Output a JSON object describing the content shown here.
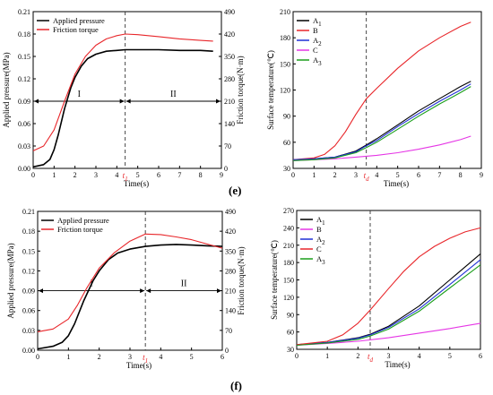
{
  "panel_labels": [
    "(e)",
    "(f)"
  ],
  "chart_data": [
    {
      "type": "line",
      "panel": "e-left",
      "xlabel": "Time(s)",
      "ylabel": "Applied pressure(MPa)",
      "y2label": "Friction torque(N·m)",
      "xlim": [
        0,
        9
      ],
      "ylim": [
        0,
        0.21
      ],
      "y2lim": [
        0,
        490
      ],
      "xticks": [
        "0",
        "1",
        "2",
        "3",
        "4",
        "5",
        "6",
        "7",
        "8",
        "9"
      ],
      "yticks": [
        "0.00",
        "0.03",
        "0.06",
        "0.09",
        "0.12",
        "0.15",
        "0.18",
        "0.21"
      ],
      "y2ticks": [
        "0",
        "70",
        "140",
        "210",
        "280",
        "350",
        "420",
        "490"
      ],
      "legend_position": "top-left",
      "marker": {
        "label": "t",
        "sub": "1",
        "x": 4.4
      },
      "region_arrow": {
        "y": 0.09,
        "split": 4.4,
        "labels": [
          "I",
          "II"
        ]
      },
      "series": [
        {
          "name": "Applied pressure",
          "color": "#000000",
          "axis": "left",
          "x": [
            0,
            0.5,
            0.8,
            1.0,
            1.2,
            1.5,
            1.8,
            2.0,
            2.3,
            2.6,
            3.0,
            3.5,
            4.0,
            4.4,
            5.0,
            6.0,
            7.0,
            8.0,
            8.6
          ],
          "y": [
            0.002,
            0.005,
            0.012,
            0.025,
            0.045,
            0.08,
            0.108,
            0.122,
            0.137,
            0.147,
            0.153,
            0.157,
            0.158,
            0.159,
            0.159,
            0.159,
            0.158,
            0.158,
            0.157
          ]
        },
        {
          "name": "Friction torque",
          "color": "#e8262a",
          "axis": "right",
          "x": [
            0,
            0.5,
            1.0,
            1.5,
            2.0,
            2.5,
            3.0,
            3.5,
            4.0,
            4.4,
            5.0,
            6.0,
            7.0,
            8.0,
            8.6
          ],
          "y": [
            55,
            70,
            120,
            210,
            295,
            350,
            385,
            405,
            415,
            420,
            418,
            412,
            405,
            400,
            398
          ]
        }
      ]
    },
    {
      "type": "line",
      "panel": "e-right",
      "xlabel": "Time(s)",
      "ylabel": "Surface temperature(℃)",
      "xlim": [
        0,
        9
      ],
      "ylim": [
        30,
        210
      ],
      "xticks": [
        "0",
        "1",
        "2",
        "3",
        "4",
        "5",
        "6",
        "7",
        "8",
        "9"
      ],
      "yticks": [
        "30",
        "60",
        "90",
        "120",
        "150",
        "180",
        "210"
      ],
      "legend_position": "top-left",
      "marker": {
        "label": "t",
        "sub": "d",
        "x": 3.5
      },
      "series": [
        {
          "name": "A",
          "sub": "1",
          "color": "#000000",
          "x": [
            0,
            1,
            2,
            3,
            3.5,
            4,
            5,
            6,
            7,
            8,
            8.5
          ],
          "y": [
            40,
            41,
            43,
            50,
            57,
            64,
            80,
            96,
            110,
            124,
            130
          ]
        },
        {
          "name": "B",
          "sub": "",
          "color": "#e8262a",
          "x": [
            0,
            1,
            1.5,
            2,
            2.5,
            3,
            3.5,
            4,
            5,
            6,
            7,
            8,
            8.5
          ],
          "y": [
            40,
            42,
            46,
            56,
            72,
            92,
            110,
            122,
            145,
            165,
            180,
            193,
            198
          ]
        },
        {
          "name": "A",
          "sub": "2",
          "color": "#1f2fd6",
          "x": [
            0,
            1,
            2,
            3,
            3.5,
            4,
            5,
            6,
            7,
            8,
            8.5
          ],
          "y": [
            40,
            41,
            43,
            49,
            56,
            62,
            78,
            93,
            107,
            120,
            127
          ]
        },
        {
          "name": "C",
          "sub": "",
          "color": "#e535e5",
          "x": [
            0,
            1,
            2,
            3,
            4,
            5,
            6,
            7,
            8,
            8.5
          ],
          "y": [
            39,
            40,
            41,
            43,
            45,
            48,
            52,
            57,
            63,
            67
          ]
        },
        {
          "name": "A",
          "sub": "3",
          "color": "#1a9e1a",
          "x": [
            0,
            1,
            2,
            3,
            3.5,
            4,
            5,
            6,
            7,
            8,
            8.5
          ],
          "y": [
            39,
            40,
            42,
            48,
            54,
            60,
            75,
            90,
            104,
            117,
            124
          ]
        }
      ]
    },
    {
      "type": "line",
      "panel": "f-left",
      "xlabel": "Time(s)",
      "ylabel": "Applied pressure(MPa)",
      "y2label": "Friction torque(N·m)",
      "xlim": [
        0,
        6
      ],
      "ylim": [
        0,
        0.21
      ],
      "y2lim": [
        0,
        490
      ],
      "xticks": [
        "0",
        "1",
        "2",
        "3",
        "4",
        "5",
        "6"
      ],
      "yticks": [
        "0.00",
        "0.03",
        "0.06",
        "0.09",
        "0.12",
        "0.15",
        "0.18",
        "0.21"
      ],
      "y2ticks": [
        "0",
        "70",
        "140",
        "210",
        "280",
        "350",
        "420",
        "490"
      ],
      "legend_position": "top-left",
      "marker": {
        "label": "t",
        "sub": "1",
        "x": 3.5
      },
      "region_arrow": {
        "y": 0.09,
        "split": 3.5,
        "labels": [
          "I",
          "II"
        ]
      },
      "series": [
        {
          "name": "Applied pressure",
          "color": "#000000",
          "axis": "left",
          "x": [
            0,
            0.5,
            0.8,
            1.0,
            1.2,
            1.5,
            1.8,
            2.0,
            2.3,
            2.6,
            3.0,
            3.5,
            4.0,
            4.5,
            5.0,
            5.5,
            6.0
          ],
          "y": [
            0.002,
            0.006,
            0.012,
            0.022,
            0.04,
            0.075,
            0.105,
            0.12,
            0.137,
            0.147,
            0.153,
            0.157,
            0.159,
            0.16,
            0.159,
            0.158,
            0.157
          ]
        },
        {
          "name": "Friction torque",
          "color": "#e8262a",
          "axis": "right",
          "x": [
            0,
            0.5,
            1.0,
            1.3,
            1.6,
            2.0,
            2.5,
            3.0,
            3.5,
            4.0,
            4.5,
            5.0,
            5.5,
            6.0
          ],
          "y": [
            65,
            75,
            110,
            160,
            220,
            290,
            345,
            385,
            410,
            408,
            400,
            390,
            375,
            360
          ]
        }
      ]
    },
    {
      "type": "line",
      "panel": "f-right",
      "xlabel": "Time(s)",
      "ylabel": "Surface temperature(℃)",
      "xlim": [
        0,
        6
      ],
      "ylim": [
        30,
        270
      ],
      "xticks": [
        "0",
        "1",
        "2",
        "3",
        "4",
        "5",
        "6"
      ],
      "yticks": [
        "30",
        "60",
        "90",
        "120",
        "150",
        "180",
        "210",
        "240",
        "270"
      ],
      "legend_position": "top-left",
      "marker": {
        "label": "t",
        "sub": "d",
        "x": 2.4
      },
      "series": [
        {
          "name": "A",
          "sub": "1",
          "color": "#000000",
          "x": [
            0,
            1,
            2,
            2.4,
            3,
            4,
            5,
            6
          ],
          "y": [
            38,
            42,
            50,
            56,
            70,
            105,
            150,
            195
          ]
        },
        {
          "name": "B",
          "sub": "",
          "color": "#e535e5",
          "x": [
            0,
            1,
            2,
            3,
            4,
            5,
            6
          ],
          "y": [
            37,
            40,
            44,
            50,
            58,
            66,
            75
          ]
        },
        {
          "name": "A",
          "sub": "2",
          "color": "#1f2fd6",
          "x": [
            0,
            1,
            2,
            2.4,
            3,
            4,
            5,
            6
          ],
          "y": [
            38,
            42,
            49,
            55,
            68,
            100,
            142,
            185
          ]
        },
        {
          "name": "C",
          "sub": "",
          "color": "#e8262a",
          "x": [
            0,
            1,
            1.5,
            2,
            2.4,
            3,
            3.5,
            4,
            4.5,
            5,
            5.5,
            6
          ],
          "y": [
            38,
            44,
            55,
            75,
            98,
            135,
            165,
            190,
            208,
            222,
            233,
            240
          ]
        },
        {
          "name": "A",
          "sub": "3",
          "color": "#1a9e1a",
          "x": [
            0,
            1,
            2,
            2.4,
            3,
            4,
            5,
            6
          ],
          "y": [
            37,
            41,
            47,
            53,
            65,
            96,
            136,
            176
          ]
        }
      ]
    }
  ]
}
